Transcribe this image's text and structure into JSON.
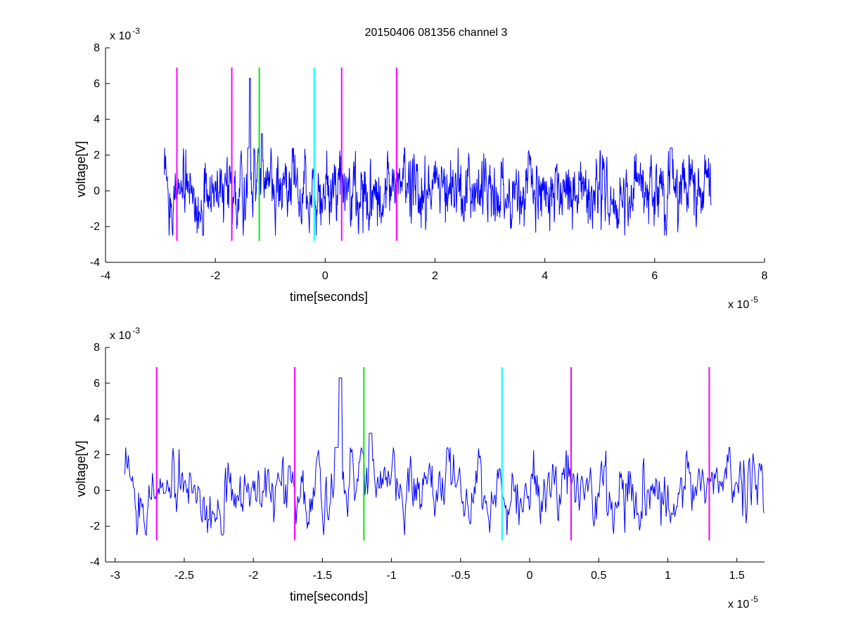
{
  "figure": {
    "title": "20150406 081356 channel 3"
  },
  "chart_data": [
    {
      "type": "line",
      "title": "20150406 081356 channel 3",
      "xlabel": "time[seconds]",
      "ylabel": "voltage[V]",
      "x_exponent": "x 10",
      "x_exponent_power": "-5",
      "y_exponent": "x 10",
      "y_exponent_power": "-3",
      "xlim": [
        -4,
        8
      ],
      "ylim": [
        -4,
        8
      ],
      "xticks": [
        "-4",
        "-2",
        "0",
        "2",
        "4",
        "6",
        "8"
      ],
      "yticks": [
        "-4",
        "-2",
        "0",
        "2",
        "4",
        "6",
        "8"
      ],
      "grid": false,
      "series": [
        {
          "color": "#0000ff",
          "x_range": [
            -2.93,
            7.03
          ]
        }
      ],
      "markers": [
        {
          "x": -2.7,
          "color": "#ff00ff",
          "y_range": [
            -2.8,
            6.9
          ]
        },
        {
          "x": -1.7,
          "color": "#ff00ff",
          "y_range": [
            -2.8,
            6.9
          ]
        },
        {
          "x": -1.2,
          "color": "#00ee00",
          "y_range": [
            -2.8,
            6.9
          ]
        },
        {
          "x": -0.2,
          "color": "#00ffff",
          "y_range": [
            -2.8,
            6.9
          ]
        },
        {
          "x": 0.3,
          "color": "#ff00ff",
          "y_range": [
            -2.8,
            6.9
          ]
        },
        {
          "x": 1.3,
          "color": "#ff00ff",
          "y_range": [
            -2.8,
            6.9
          ]
        }
      ]
    },
    {
      "type": "line",
      "title": "",
      "xlabel": "time[seconds]",
      "ylabel": "voltage[V]",
      "x_exponent": "x 10",
      "x_exponent_power": "-5",
      "y_exponent": "x 10",
      "y_exponent_power": "-3",
      "xlim": [
        -3.07,
        1.7
      ],
      "ylim": [
        -4,
        8
      ],
      "xticks": [
        "-3",
        "-2.5",
        "-2",
        "-1.5",
        "-1",
        "-0.5",
        "0",
        "0.5",
        "1",
        "1.5"
      ],
      "yticks": [
        "-4",
        "-2",
        "0",
        "2",
        "4",
        "6",
        "8"
      ],
      "grid": false,
      "series": [
        {
          "color": "#0000ff",
          "x_range": [
            -2.93,
            1.7
          ]
        }
      ],
      "markers": [
        {
          "x": -2.7,
          "color": "#ff00ff",
          "y_range": [
            -2.8,
            6.9
          ]
        },
        {
          "x": -1.7,
          "color": "#ff00ff",
          "y_range": [
            -2.8,
            6.9
          ]
        },
        {
          "x": -1.2,
          "color": "#00ee00",
          "y_range": [
            -2.8,
            6.9
          ]
        },
        {
          "x": -0.2,
          "color": "#00ffff",
          "y_range": [
            -2.8,
            6.9
          ]
        },
        {
          "x": 0.3,
          "color": "#ff00ff",
          "y_range": [
            -2.8,
            6.9
          ]
        },
        {
          "x": 1.3,
          "color": "#ff00ff",
          "y_range": [
            -2.8,
            6.9
          ]
        }
      ]
    }
  ]
}
